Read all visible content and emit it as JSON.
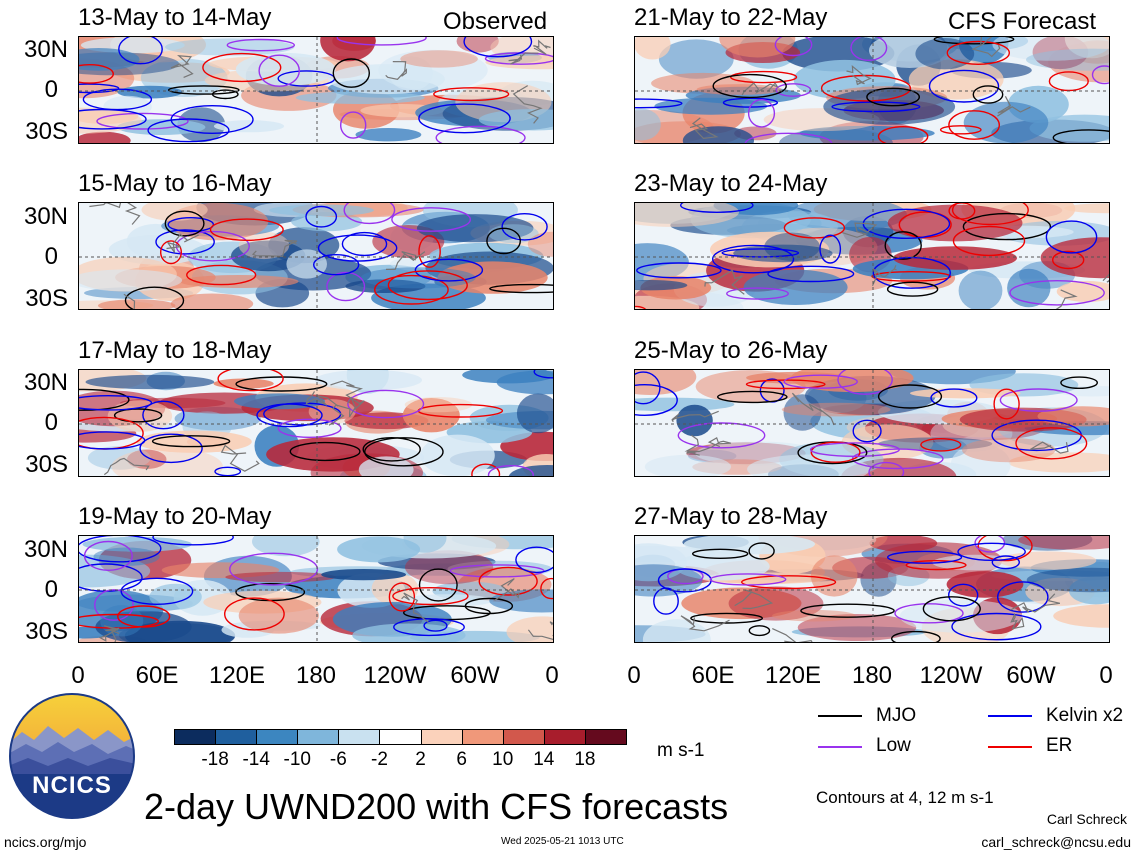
{
  "panels": [
    {
      "title": "13-May to 14-May",
      "tag": "Observed"
    },
    {
      "title": "15-May to 16-May",
      "tag": ""
    },
    {
      "title": "17-May to 18-May",
      "tag": ""
    },
    {
      "title": "19-May to 20-May",
      "tag": ""
    },
    {
      "title": "21-May to 22-May",
      "tag": "CFS Forecast"
    },
    {
      "title": "23-May to 24-May",
      "tag": ""
    },
    {
      "title": "25-May to 26-May",
      "tag": ""
    },
    {
      "title": "27-May to 28-May",
      "tag": ""
    }
  ],
  "lat_labels": [
    "30N",
    "0",
    "30S"
  ],
  "lon_labels": [
    "0",
    "60E",
    "120E",
    "180",
    "120W",
    "60W",
    "0"
  ],
  "colorbar": {
    "labels": [
      "-18",
      "-14",
      "-10",
      "-6",
      "-2",
      "2",
      "6",
      "10",
      "14",
      "18"
    ],
    "unit": "m s-1",
    "colors": [
      "#0c2c5e",
      "#1f5f9e",
      "#3c86c0",
      "#7fb6db",
      "#c9e1f0",
      "#ffffff",
      "#fbd2bb",
      "#f0987a",
      "#d2584c",
      "#a81d2c",
      "#650a1e"
    ]
  },
  "legend": {
    "items": [
      {
        "label": "MJO",
        "color": "#000000"
      },
      {
        "label": "Kelvin x2",
        "color": "#0000ee"
      },
      {
        "label": "Low",
        "color": "#9933ee"
      },
      {
        "label": "ER",
        "color": "#ee0000"
      }
    ],
    "contours_note": "Contours at 4, 12 m s-1"
  },
  "footer": {
    "main_title": "2-day UWND200 with CFS forecasts",
    "logo_text": "NCICS",
    "site": "ncics.org/mjo",
    "timestamp": "Wed 2025-05-21 1013 UTC",
    "author": "Carl Schreck",
    "email": "carl_schreck@ncsu.edu"
  }
}
